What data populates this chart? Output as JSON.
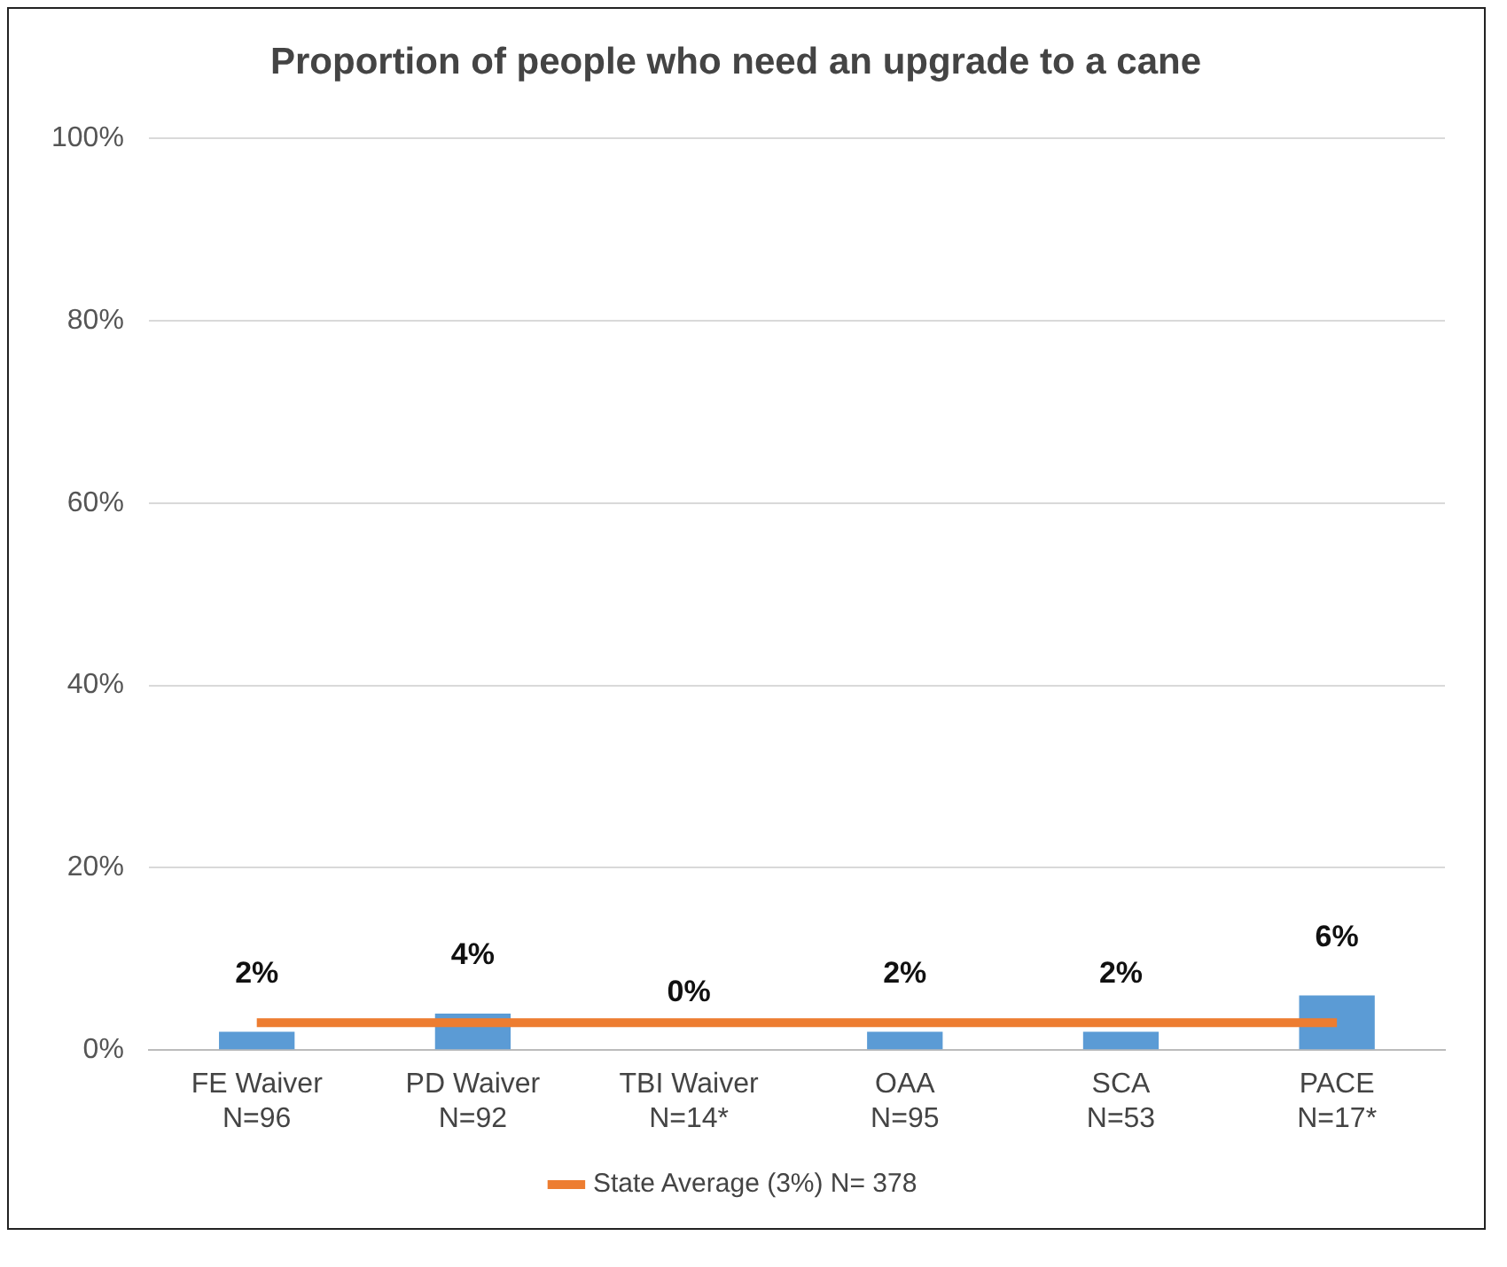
{
  "chart_data": {
    "type": "bar",
    "title": "Proportion of people who need an upgrade to a cane",
    "categories": [
      "FE Waiver\nN=96",
      "PD Waiver\nN=92",
      "TBI Waiver\nN=14*",
      "OAA\nN=95",
      "SCA\nN=53",
      "PACE\nN=17*"
    ],
    "series": [
      {
        "color": "#5b9bd5",
        "values": [
          2,
          4,
          0,
          2,
          2,
          6
        ],
        "value_labels": [
          "2%",
          "4%",
          "0%",
          "2%",
          "2%",
          "6%"
        ]
      },
      {
        "type": "line",
        "name": "State Average (3%) N= 378",
        "color": "#ed7d31",
        "values": [
          3,
          3,
          3,
          3,
          3,
          3
        ]
      }
    ],
    "ylim": [
      0,
      100
    ],
    "yticks": [
      {
        "value": 0,
        "label": "0%"
      },
      {
        "value": 20,
        "label": "20%"
      },
      {
        "value": 40,
        "label": "40%"
      },
      {
        "value": 60,
        "label": "60%"
      },
      {
        "value": 80,
        "label": "80%"
      },
      {
        "value": 100,
        "label": "100%"
      }
    ],
    "grid": "y",
    "legend": "bottom",
    "marker": "none",
    "line_style": "solid"
  }
}
